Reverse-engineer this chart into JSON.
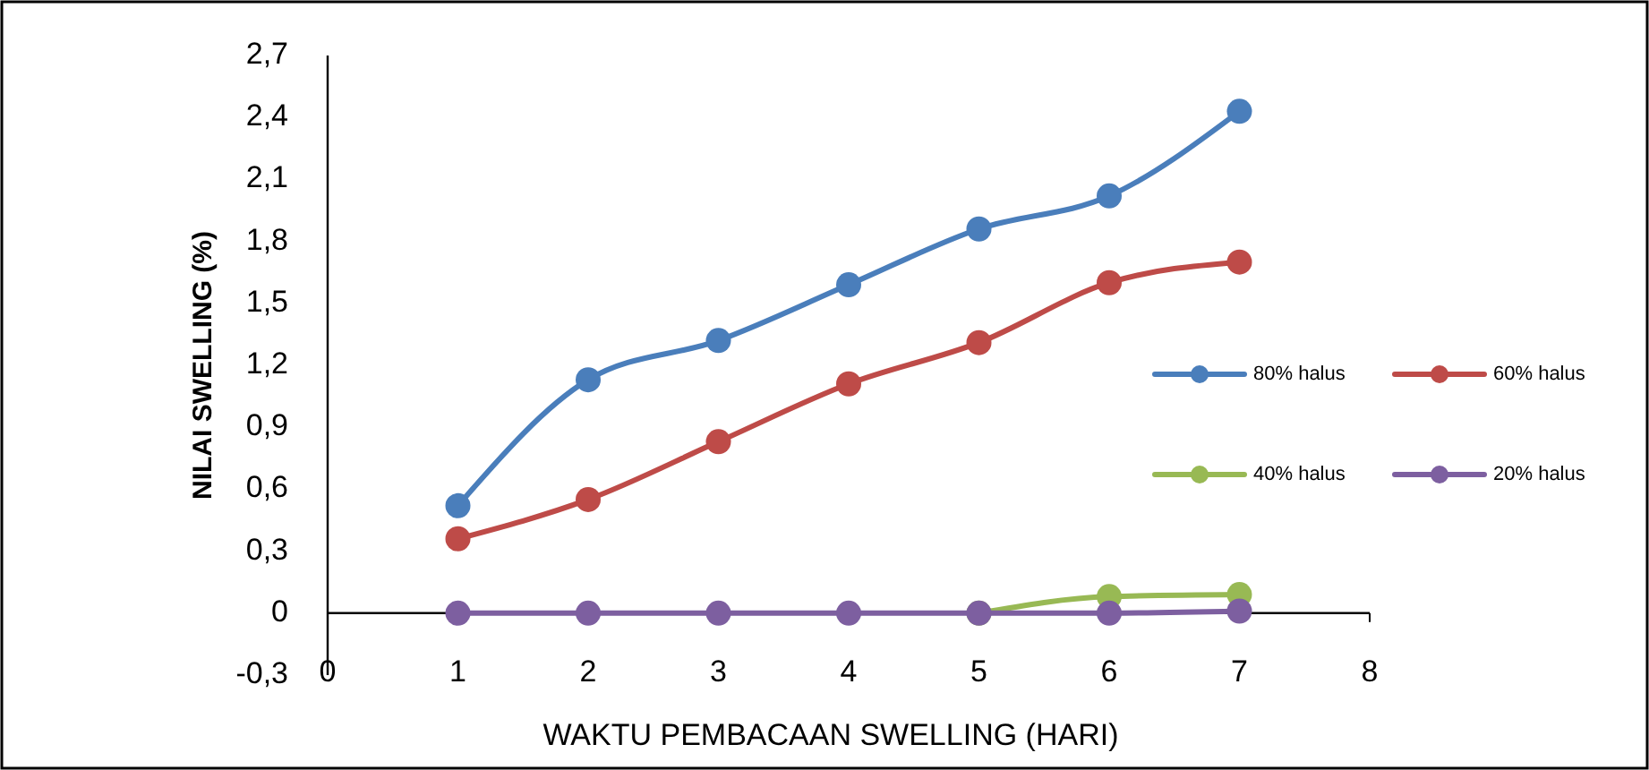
{
  "chart_data": {
    "type": "line",
    "xlabel": "WAKTU PEMBACAAN SWELLING (HARI)",
    "ylabel": "NILAI SWELLING (%)",
    "x": [
      1,
      2,
      3,
      4,
      5,
      6,
      7
    ],
    "series": [
      {
        "name": "80% halus",
        "color": "#4a7ebb",
        "values": [
          0.52,
          1.13,
          1.32,
          1.59,
          1.86,
          2.02,
          2.43
        ]
      },
      {
        "name": "60% halus",
        "color": "#be4b48",
        "values": [
          0.36,
          0.55,
          0.83,
          1.11,
          1.31,
          1.6,
          1.7
        ]
      },
      {
        "name": "40% halus",
        "color": "#98b954",
        "values": [
          null,
          null,
          null,
          null,
          0,
          0.08,
          0.09
        ]
      },
      {
        "name": "20% halus",
        "color": "#7d5fa0",
        "values": [
          0,
          0,
          0,
          0,
          0,
          0,
          0.01
        ]
      }
    ],
    "xlim": [
      0,
      8
    ],
    "xticks": [
      0,
      1,
      2,
      3,
      4,
      5,
      6,
      7,
      8
    ],
    "ylim": [
      -0.3,
      2.7
    ],
    "yticks": [
      {
        "value": -0.3,
        "label": "-0,3"
      },
      0,
      {
        "value": 0.3,
        "label": "0,3"
      },
      {
        "value": 0.6,
        "label": "0,6"
      },
      {
        "value": 0.9,
        "label": "0,9"
      },
      {
        "value": 1.2,
        "label": "1,2"
      },
      {
        "value": 1.5,
        "label": "1,5"
      },
      {
        "value": 1.8,
        "label": "1,8"
      },
      {
        "value": 2.1,
        "label": "2,1"
      },
      {
        "value": 2.4,
        "label": "2,4"
      },
      {
        "value": 2.7,
        "label": "2,7"
      }
    ],
    "grid": false,
    "legend": "right",
    "marker": "circle",
    "line_style": "solid"
  }
}
